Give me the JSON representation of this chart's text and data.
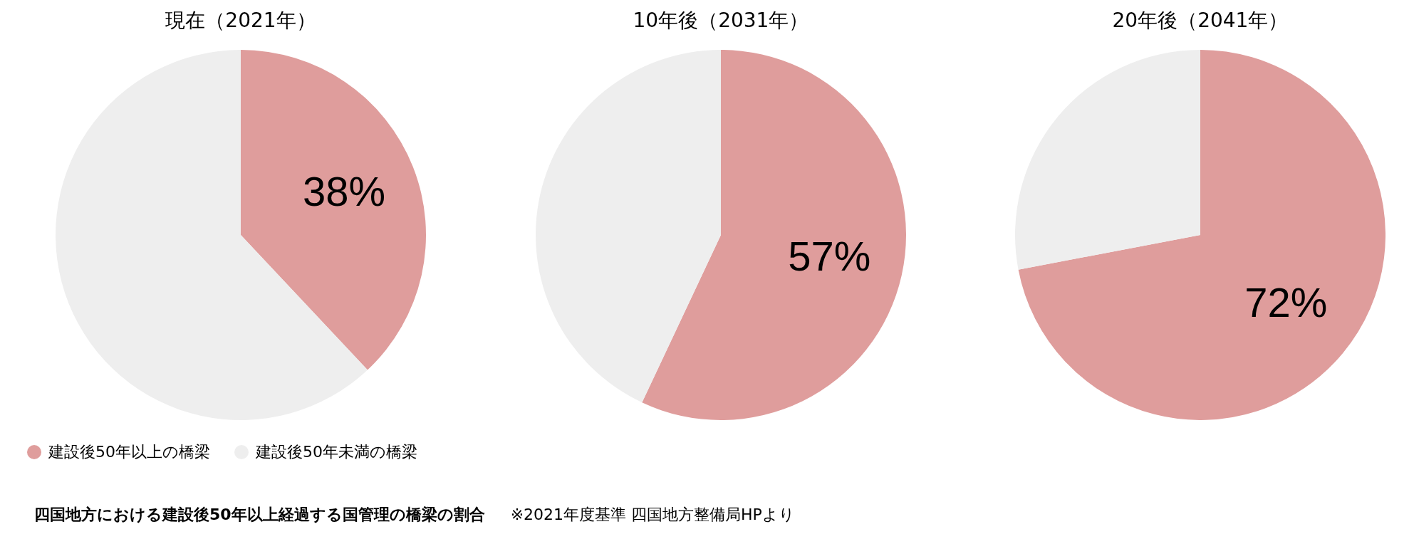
{
  "chart_data": [
    {
      "type": "pie",
      "title": "現在（2021年）",
      "categories": [
        "建設後50年以上の橋梁",
        "建設後50年未満の橋梁"
      ],
      "values": [
        38,
        62
      ],
      "colors": [
        "#df9d9c",
        "#eeeeee"
      ],
      "value_labels": [
        "38%",
        null
      ],
      "legend": "bottom left",
      "annotations": [
        "四国地方における建設後50年以上経過する国管理の橋梁の割合",
        "※2021年度基準 四国地方整備局HPより"
      ]
    },
    {
      "type": "pie",
      "title": "10年後（2031年）",
      "categories": [
        null,
        null
      ],
      "values": [
        57,
        43
      ],
      "colors": [
        "#df9d9c",
        "#eeeeee"
      ],
      "value_labels": [
        "57%",
        null
      ]
    },
    {
      "type": "pie",
      "title": "20年後（2041年）",
      "categories": [
        null,
        null
      ],
      "values": [
        72,
        28
      ],
      "colors": [
        "#df9d9c",
        "#eeeeee"
      ],
      "value_labels": [
        "72%",
        null
      ]
    }
  ]
}
